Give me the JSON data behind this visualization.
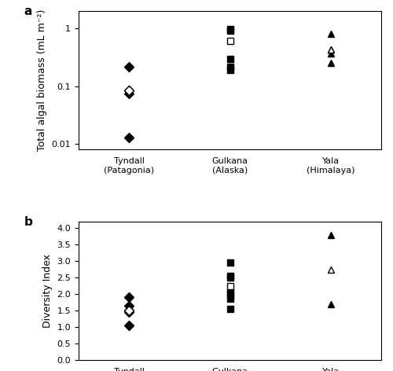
{
  "panel_a": {
    "ylabel": "Total algal biomass (mL m⁻²)",
    "ylim": [
      0.008,
      2.0
    ],
    "yticks": [
      0.01,
      0.1,
      1
    ],
    "yticklabels": [
      "0.01",
      "0.1",
      "1"
    ],
    "tyndall_solid": [
      0.22,
      0.085,
      0.075,
      0.013
    ],
    "tyndall_open_mean": [
      0.085
    ],
    "gulkana_solid": [
      0.97,
      0.93,
      0.3,
      0.22,
      0.19
    ],
    "gulkana_open_mean": [
      0.62
    ],
    "yala_solid": [
      0.8,
      0.43,
      0.37,
      0.25
    ],
    "yala_open_mean": [
      0.43
    ]
  },
  "panel_b": {
    "ylabel": "Diversity Index",
    "ylim": [
      0.0,
      4.2
    ],
    "yticks": [
      0.0,
      0.5,
      1.0,
      1.5,
      2.0,
      2.5,
      3.0,
      3.5,
      4.0
    ],
    "tyndall_solid": [
      1.9,
      1.65,
      1.5,
      1.45,
      1.05
    ],
    "tyndall_open_mean": [
      1.5
    ],
    "gulkana_solid": [
      2.95,
      2.55,
      2.5,
      2.05,
      2.0,
      1.85,
      1.55
    ],
    "gulkana_open_mean": [
      2.25
    ],
    "yala_solid": [
      3.8,
      1.7
    ],
    "yala_open_mean": [
      2.75
    ]
  },
  "xlabels": [
    "Tyndall\n(Patagonia)",
    "Gulkana\n(Alaska)",
    "Yala\n(Himalaya)"
  ],
  "xticks": [
    1,
    2,
    3
  ],
  "marker_size": 6,
  "open_marker_size": 6,
  "label_fontsize": 9,
  "tick_fontsize": 8,
  "panel_label_fontsize": 11
}
